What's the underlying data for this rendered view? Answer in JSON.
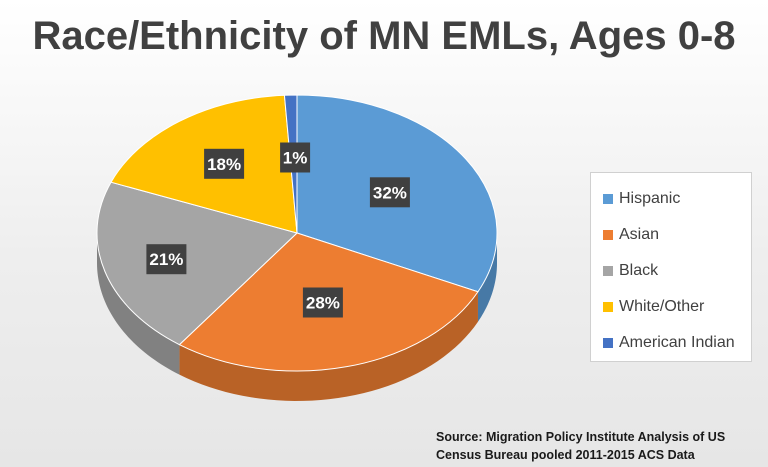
{
  "chart_data": {
    "type": "pie",
    "title": "Race/Ethnicity of MN EMLs, Ages 0-8",
    "categories": [
      "Hispanic",
      "Asian",
      "Black",
      "White/Other",
      "American Indian"
    ],
    "values": [
      32,
      28,
      21,
      18,
      1
    ],
    "value_labels": [
      "32%",
      "28%",
      "21%",
      "18%",
      "1%"
    ],
    "colors": [
      "#5b9bd5",
      "#ed7d31",
      "#a5a5a5",
      "#ffc000",
      "#4472c4"
    ],
    "legend_position": "right",
    "style": "3d-tilted"
  },
  "source": {
    "line1": "Source: Migration Policy Institute Analysis of US",
    "line2": "Census Bureau pooled 2011-2015 ACS Data"
  }
}
